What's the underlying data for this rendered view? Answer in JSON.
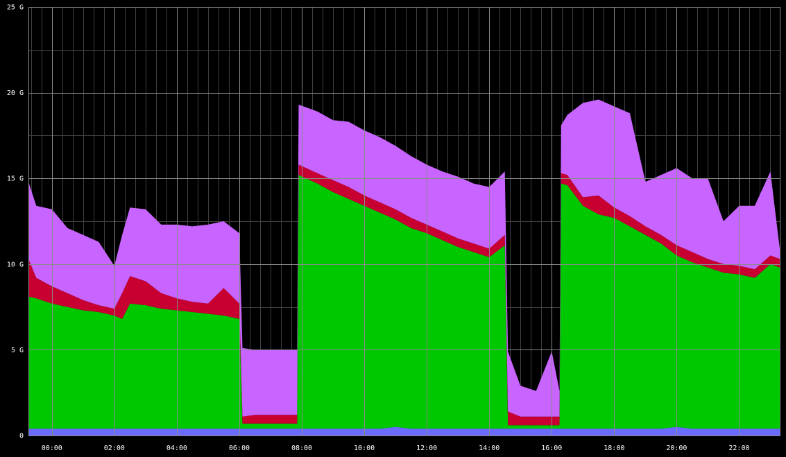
{
  "chart_data": {
    "type": "area",
    "stacked": true,
    "background": "#000000",
    "grid": true,
    "legend": "none",
    "title": "",
    "xlabel": "",
    "ylabel": "",
    "ylim": [
      0,
      25
    ],
    "yticks": [
      {
        "value": 0,
        "label": "0"
      },
      {
        "value": 5,
        "label": "5 G"
      },
      {
        "value": 10,
        "label": "10 G"
      },
      {
        "value": 15,
        "label": "15 G"
      },
      {
        "value": 20,
        "label": "20 G"
      },
      {
        "value": 25,
        "label": "25 G"
      }
    ],
    "xlim": [
      -0.75,
      23.3
    ],
    "xticks": [
      {
        "value": 0,
        "label": "00:00"
      },
      {
        "value": 2,
        "label": "02:00"
      },
      {
        "value": 4,
        "label": "04:00"
      },
      {
        "value": 6,
        "label": "06:00"
      },
      {
        "value": 8,
        "label": "08:00"
      },
      {
        "value": 10,
        "label": "10:00"
      },
      {
        "value": 12,
        "label": "12:00"
      },
      {
        "value": 14,
        "label": "14:00"
      },
      {
        "value": 16,
        "label": "16:00"
      },
      {
        "value": 18,
        "label": "18:00"
      },
      {
        "value": 20,
        "label": "20:00"
      },
      {
        "value": 22,
        "label": "22:00"
      }
    ],
    "x": [
      -0.75,
      -0.5,
      0,
      0.5,
      1,
      1.5,
      2,
      2.25,
      2.5,
      3,
      3.5,
      4,
      4.5,
      5,
      5.5,
      6,
      6.1,
      6.5,
      7,
      7.5,
      7.85,
      7.9,
      8.5,
      9,
      9.5,
      10,
      10.5,
      11,
      11.5,
      12,
      12.5,
      13,
      13.5,
      14,
      14.5,
      14.6,
      15,
      15.5,
      16,
      16.25,
      16.3,
      16.5,
      17,
      17.5,
      18,
      18.5,
      19,
      19.5,
      20,
      20.5,
      21,
      21.5,
      22,
      22.5,
      23,
      23.3
    ],
    "series": [
      {
        "color": "#6b6bff",
        "values": [
          0.4,
          0.4,
          0.4,
          0.4,
          0.4,
          0.4,
          0.4,
          0.4,
          0.4,
          0.4,
          0.4,
          0.4,
          0.4,
          0.4,
          0.4,
          0.4,
          0.4,
          0.4,
          0.4,
          0.4,
          0.4,
          0.4,
          0.4,
          0.4,
          0.4,
          0.4,
          0.4,
          0.5,
          0.4,
          0.4,
          0.4,
          0.4,
          0.4,
          0.4,
          0.4,
          0.4,
          0.4,
          0.4,
          0.4,
          0.4,
          0.4,
          0.4,
          0.4,
          0.4,
          0.4,
          0.4,
          0.4,
          0.4,
          0.5,
          0.4,
          0.4,
          0.4,
          0.4,
          0.4,
          0.4,
          0.4
        ]
      },
      {
        "color": "#00c800",
        "values": [
          7.7,
          7.6,
          7.3,
          7.1,
          6.9,
          6.8,
          6.6,
          6.4,
          7.3,
          7.2,
          7.0,
          6.9,
          6.8,
          6.7,
          6.6,
          6.4,
          0.3,
          0.3,
          0.3,
          0.3,
          0.3,
          14.8,
          14.3,
          13.8,
          13.4,
          13.0,
          12.6,
          12.1,
          11.7,
          11.4,
          11.0,
          10.6,
          10.3,
          10.0,
          10.7,
          0.2,
          0.2,
          0.2,
          0.2,
          0.2,
          14.3,
          14.2,
          13.0,
          12.5,
          12.3,
          11.8,
          11.3,
          10.8,
          10.0,
          9.7,
          9.4,
          9.1,
          9.0,
          8.8,
          9.6,
          9.4
        ]
      },
      {
        "color": "#c80032",
        "values": [
          2.2,
          1.2,
          1.0,
          0.8,
          0.6,
          0.4,
          0.4,
          1.5,
          1.6,
          1.4,
          0.9,
          0.7,
          0.6,
          0.6,
          1.6,
          0.9,
          0.4,
          0.5,
          0.5,
          0.5,
          0.5,
          0.6,
          0.6,
          0.7,
          0.7,
          0.6,
          0.6,
          0.6,
          0.6,
          0.5,
          0.5,
          0.5,
          0.5,
          0.5,
          0.6,
          0.8,
          0.5,
          0.5,
          0.5,
          0.5,
          0.6,
          0.6,
          0.5,
          1.1,
          0.6,
          0.6,
          0.5,
          0.5,
          0.6,
          0.6,
          0.5,
          0.5,
          0.5,
          0.5,
          0.5,
          0.5
        ]
      },
      {
        "color": "#c864ff",
        "values": [
          4.5,
          4.2,
          4.5,
          3.8,
          3.8,
          3.7,
          2.5,
          3.4,
          4.0,
          4.2,
          4.0,
          4.3,
          4.4,
          4.6,
          3.9,
          4.1,
          4.0,
          3.8,
          3.8,
          3.8,
          3.8,
          3.5,
          3.6,
          3.5,
          3.8,
          3.8,
          3.8,
          3.7,
          3.6,
          3.5,
          3.5,
          3.6,
          3.5,
          3.6,
          3.7,
          3.5,
          1.8,
          1.5,
          3.8,
          1.5,
          2.8,
          3.5,
          5.5,
          5.6,
          5.9,
          6.0,
          2.6,
          3.5,
          4.5,
          4.3,
          4.7,
          2.5,
          3.5,
          3.7,
          4.9,
          0.6
        ]
      }
    ]
  }
}
